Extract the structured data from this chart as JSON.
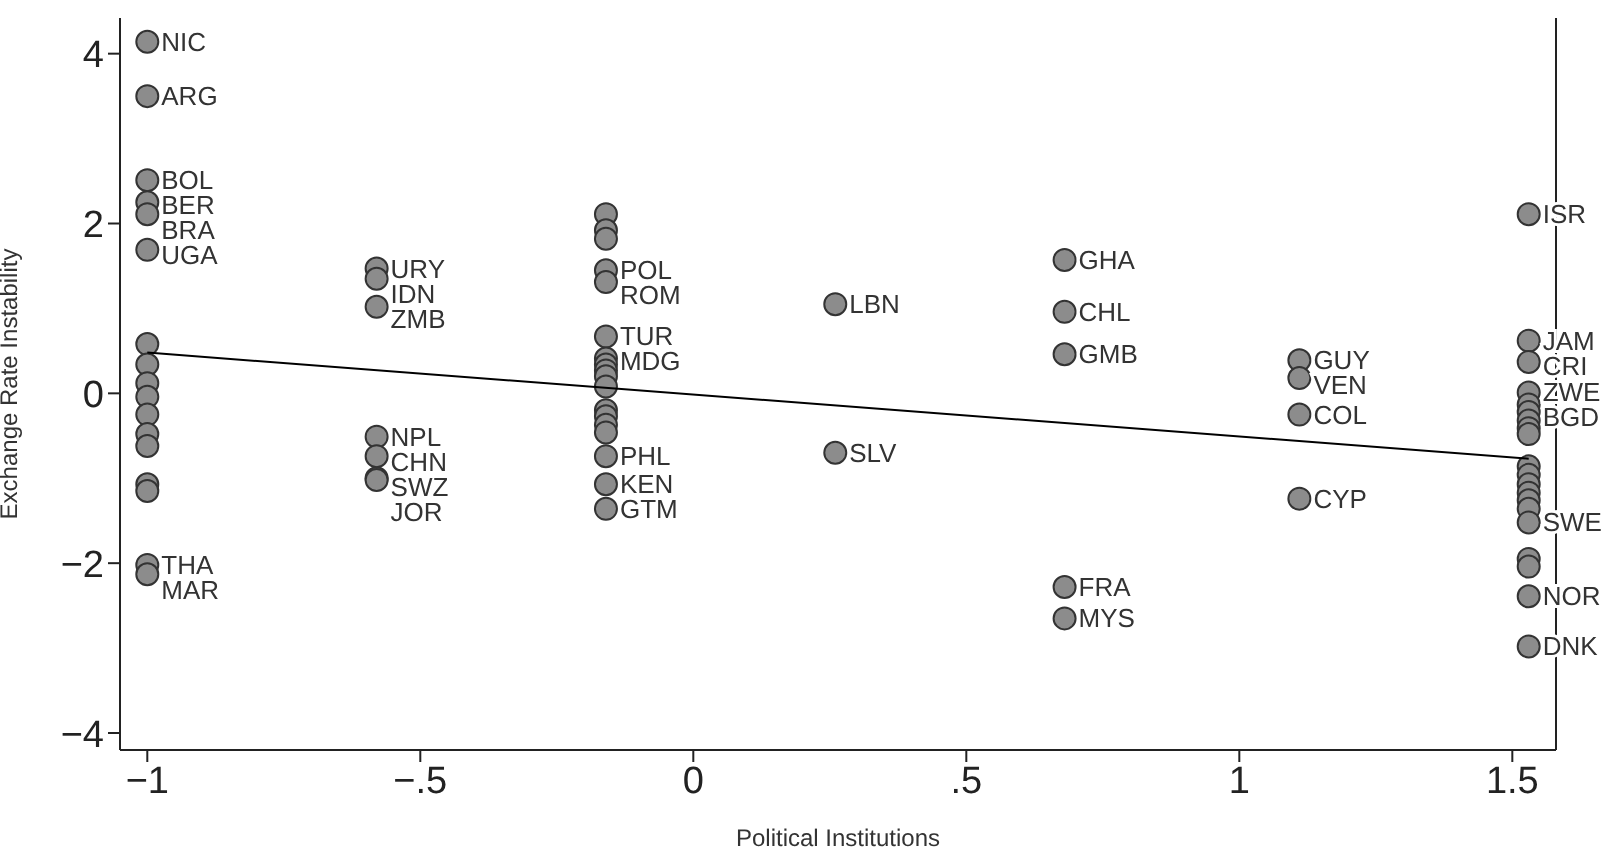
{
  "chart_data": {
    "type": "scatter",
    "xlabel": "Political Institutions",
    "ylabel": "Exchange Rate Instability",
    "xlim": [
      -1.05,
      1.58
    ],
    "ylim": [
      -4.2,
      4.42
    ],
    "xticks": [
      {
        "value": -1,
        "label": "−1"
      },
      {
        "value": -0.5,
        "label": "−.5"
      },
      0,
      {
        "value": 0.5,
        "label": ".5"
      },
      1,
      1.5
    ],
    "yticks": [
      {
        "value": -4,
        "label": "−4"
      },
      {
        "value": -2,
        "label": "−2"
      },
      0,
      2,
      4
    ],
    "grid": false,
    "legend": false,
    "marker": "circle",
    "series": [
      {
        "type": "scatter",
        "color": "#8c8c8c",
        "x": [
          -1,
          -1,
          -1,
          -1,
          -1,
          -1,
          -1,
          -1,
          -1,
          -1,
          -1,
          -1,
          -1,
          -1,
          -1,
          -1,
          -1,
          -0.58,
          -0.58,
          -0.58,
          -0.58,
          -0.58,
          -0.58,
          -0.58,
          -0.16,
          -0.16,
          -0.16,
          -0.16,
          -0.16,
          -0.16,
          -0.16,
          -0.16,
          -0.16,
          -0.16,
          -0.16,
          -0.16,
          -0.16,
          -0.16,
          -0.16,
          -0.16,
          -0.16,
          -0.16,
          0.26,
          0.26,
          0.68,
          0.68,
          0.68,
          0.68,
          0.68,
          1.11,
          1.11,
          1.11,
          1.11,
          1.53,
          1.53,
          1.53,
          1.53,
          1.53,
          1.53,
          1.53,
          1.53,
          1.53,
          1.53,
          1.53,
          1.53,
          1.53,
          1.53,
          1.53,
          1.53,
          1.53,
          1.53,
          1.53,
          1.53
        ],
        "values": [
          4.14,
          3.5,
          2.51,
          2.25,
          2.11,
          1.69,
          0.58,
          0.34,
          0.12,
          -0.04,
          -0.25,
          -0.48,
          -0.62,
          -1.07,
          -1.15,
          -2.02,
          -2.13,
          1.47,
          1.35,
          1.02,
          -0.51,
          -0.74,
          -1.0,
          -1.02,
          2.11,
          1.92,
          1.82,
          1.45,
          1.31,
          0.67,
          0.41,
          0.34,
          0.27,
          0.2,
          0.08,
          -0.2,
          -0.27,
          -0.37,
          -0.46,
          -0.74,
          -1.07,
          -1.36,
          1.05,
          -0.7,
          1.57,
          0.96,
          0.46,
          -2.28,
          -2.65,
          0.39,
          0.18,
          -0.25,
          -1.24,
          2.11,
          0.62,
          0.37,
          0.01,
          -0.13,
          -0.22,
          -0.32,
          -0.41,
          -0.48,
          -0.86,
          -0.96,
          -1.07,
          -1.17,
          -1.26,
          -1.36,
          -1.52,
          -1.95,
          -2.04,
          -2.39,
          -2.98
        ]
      },
      {
        "type": "line",
        "color": "#000000",
        "marker": "none",
        "x": [
          -1,
          1.53
        ],
        "values": [
          0.48,
          -0.77
        ]
      }
    ],
    "annotations": [
      {
        "text": "NIC",
        "x": -1,
        "y": 4.14
      },
      {
        "text": "ARG",
        "x": -1,
        "y": 3.5
      },
      {
        "text": "BOL",
        "x": -1,
        "y": 2.51
      },
      {
        "text": "BER",
        "x": -1,
        "y": 2.25
      },
      {
        "text": "BRA",
        "x": -1,
        "y": 2.11
      },
      {
        "text": "UGA",
        "x": -1,
        "y": 1.69
      },
      {
        "text": "THA",
        "x": -1,
        "y": -2.02
      },
      {
        "text": "MAR",
        "x": -1,
        "y": -2.13
      },
      {
        "text": "URY",
        "x": -0.58,
        "y": 1.47
      },
      {
        "text": "IDN",
        "x": -0.58,
        "y": 1.35
      },
      {
        "text": "ZMB",
        "x": -0.58,
        "y": 1.02
      },
      {
        "text": "NPL",
        "x": -0.58,
        "y": -0.51
      },
      {
        "text": "CHN",
        "x": -0.58,
        "y": -0.74
      },
      {
        "text": "SWZ",
        "x": -0.58,
        "y": -1.0
      },
      {
        "text": "JOR",
        "x": -0.58,
        "y": -1.02
      },
      {
        "text": "POL",
        "x": -0.16,
        "y": 1.45
      },
      {
        "text": "ROM",
        "x": -0.16,
        "y": 1.31
      },
      {
        "text": "TUR",
        "x": -0.16,
        "y": 0.67
      },
      {
        "text": "MDG",
        "x": -0.16,
        "y": 0.41
      },
      {
        "text": "PHL",
        "x": -0.16,
        "y": -0.74
      },
      {
        "text": "KEN",
        "x": -0.16,
        "y": -1.07
      },
      {
        "text": "GTM",
        "x": -0.16,
        "y": -1.36
      },
      {
        "text": "LBN",
        "x": 0.26,
        "y": 1.05
      },
      {
        "text": "SLV",
        "x": 0.26,
        "y": -0.7
      },
      {
        "text": "GHA",
        "x": 0.68,
        "y": 1.57
      },
      {
        "text": "CHL",
        "x": 0.68,
        "y": 0.96
      },
      {
        "text": "GMB",
        "x": 0.68,
        "y": 0.46
      },
      {
        "text": "FRA",
        "x": 0.68,
        "y": -2.28
      },
      {
        "text": "MYS",
        "x": 0.68,
        "y": -2.65
      },
      {
        "text": "GUY",
        "x": 1.11,
        "y": 0.39
      },
      {
        "text": "VEN",
        "x": 1.11,
        "y": 0.18
      },
      {
        "text": "COL",
        "x": 1.11,
        "y": -0.25
      },
      {
        "text": "CYP",
        "x": 1.11,
        "y": -1.24
      },
      {
        "text": "ISR",
        "x": 1.53,
        "y": 2.11
      },
      {
        "text": "JAM",
        "x": 1.53,
        "y": 0.62
      },
      {
        "text": "CRI",
        "x": 1.53,
        "y": 0.37
      },
      {
        "text": "ZWE",
        "x": 1.53,
        "y": 0.01
      },
      {
        "text": "BGD",
        "x": 1.53,
        "y": -0.22
      },
      {
        "text": "SWE",
        "x": 1.53,
        "y": -1.52
      },
      {
        "text": "NOR",
        "x": 1.53,
        "y": -2.39
      },
      {
        "text": "DNK",
        "x": 1.53,
        "y": -2.98
      }
    ]
  }
}
